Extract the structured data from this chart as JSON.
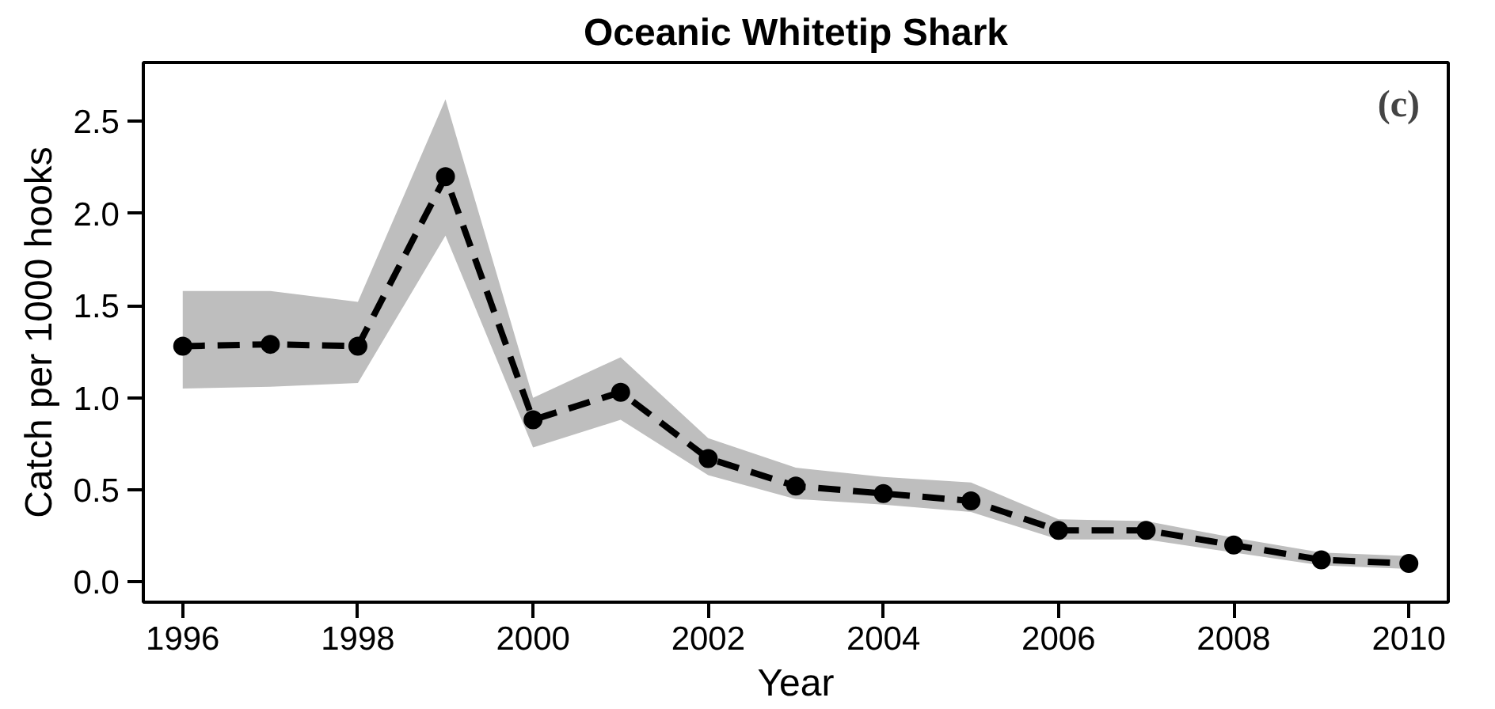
{
  "chart_data": {
    "type": "line",
    "title": "Oceanic Whitetip Shark",
    "xlabel": "Year",
    "ylabel": "Catch per 1000 hooks",
    "x": [
      1996,
      1997,
      1998,
      1999,
      2000,
      2001,
      2002,
      2003,
      2004,
      2005,
      2006,
      2007,
      2008,
      2009,
      2010
    ],
    "series": [
      {
        "color": "#000000",
        "values": [
          1.28,
          1.29,
          1.28,
          2.2,
          0.88,
          1.03,
          0.67,
          0.52,
          0.48,
          0.44,
          0.28,
          0.28,
          0.2,
          0.12,
          0.1
        ],
        "lower": [
          1.05,
          1.06,
          1.08,
          1.88,
          0.73,
          0.88,
          0.58,
          0.45,
          0.42,
          0.38,
          0.23,
          0.23,
          0.16,
          0.09,
          0.07
        ],
        "upper": [
          1.58,
          1.58,
          1.52,
          2.62,
          1.0,
          1.22,
          0.78,
          0.62,
          0.57,
          0.54,
          0.34,
          0.33,
          0.24,
          0.16,
          0.14
        ]
      }
    ],
    "xlim": [
      1995.55,
      2010.45
    ],
    "ylim": [
      -0.11,
      2.82
    ],
    "xticks": [
      1996,
      1998,
      2000,
      2002,
      2004,
      2006,
      2008,
      2010
    ],
    "yticks": [
      {
        "value": 0,
        "label": "0.0"
      },
      {
        "value": 0.5,
        "label": "0.5"
      },
      {
        "value": 1,
        "label": "1.0"
      },
      {
        "value": 1.5,
        "label": "1.5"
      },
      {
        "value": 2,
        "label": "2.0"
      },
      {
        "value": 2.5,
        "label": "2.5"
      }
    ],
    "marker": "circle",
    "line_style": "dashed",
    "grid": false,
    "annotations": [
      "(c)"
    ]
  }
}
